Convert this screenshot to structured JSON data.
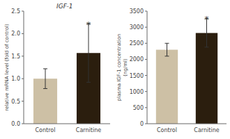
{
  "chart_data": [
    {
      "type": "bar",
      "title": "IGF-1",
      "categories": [
        "Control",
        "Carnitine"
      ],
      "values": [
        1.0,
        1.57
      ],
      "errors": [
        0.22,
        0.65
      ],
      "colors": [
        "#cdc0a5",
        "#2b1e0e"
      ],
      "ylabel": "relative mRNA level (fold of control)",
      "ylim": [
        0,
        2.5
      ],
      "yticks": [
        {
          "value": 0,
          "label": "0.0"
        },
        0.5,
        {
          "value": 1,
          "label": "1.0"
        },
        1.5,
        {
          "value": 2,
          "label": "2.0"
        },
        2.5
      ],
      "annotations": [
        {
          "text": "*",
          "category": "Carnitine",
          "y": 2.2
        }
      ],
      "grid": false
    },
    {
      "type": "bar",
      "categories": [
        "Control",
        "Carnitine"
      ],
      "values": [
        2300,
        2820
      ],
      "errors": [
        200,
        440
      ],
      "colors": [
        "#cdc0a5",
        "#2b1e0e"
      ],
      "ylabel": "plasma IGF-1 concentration\n(ng/ml)",
      "ylim": [
        0,
        3500
      ],
      "yticks": [
        0,
        500,
        1000,
        1500,
        2000,
        2500,
        3000,
        3500
      ],
      "annotations": [
        {
          "text": "*",
          "category": "Carnitine",
          "y": 3260
        }
      ],
      "grid": false
    }
  ]
}
